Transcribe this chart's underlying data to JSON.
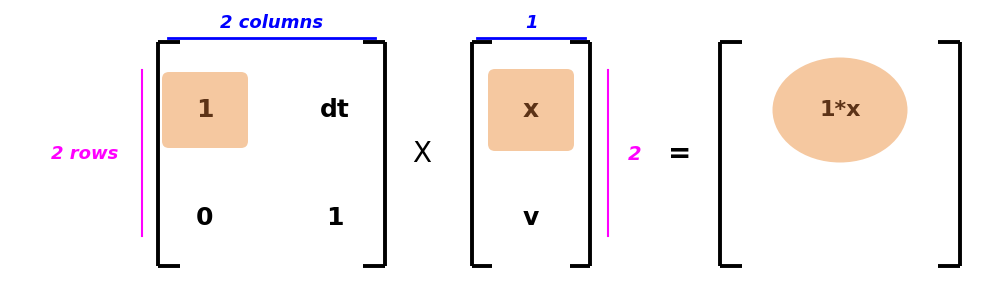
{
  "bg_color": "#ffffff",
  "blue_color": "#0000ff",
  "magenta_color": "#ff00ff",
  "dark_brown": "#5c3317",
  "orange_fill": "#f5c8a0",
  "bracket_color": "#000000",
  "label_2columns": "2 columns",
  "label_1_col": "1",
  "label_2rows": "2 rows",
  "label_X": "X",
  "label_equals": "=",
  "label_2": "2",
  "matrix1": [
    [
      "1",
      "dt"
    ],
    [
      "0",
      "1"
    ]
  ],
  "matrix2": [
    [
      "x"
    ],
    [
      "v"
    ]
  ],
  "result": [
    [
      "1*x"
    ],
    [
      ""
    ]
  ],
  "figsize": [
    9.94,
    3.08
  ],
  "dpi": 100,
  "xlim": [
    0,
    9.94
  ],
  "ylim": [
    0,
    3.08
  ]
}
